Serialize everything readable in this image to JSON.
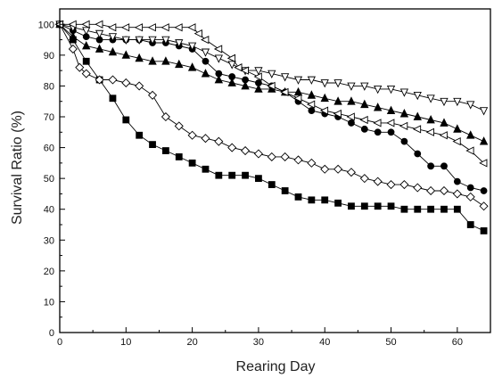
{
  "chart_data": {
    "type": "line",
    "xlabel": "Rearing Day",
    "ylabel": "Survival Ratio (%)",
    "xlim": [
      0,
      65
    ],
    "ylim": [
      0,
      105
    ],
    "xticks": [
      "0",
      "10",
      "20",
      "30",
      "40",
      "50",
      "60"
    ],
    "xtick_values": [
      0,
      10,
      20,
      30,
      40,
      50,
      60
    ],
    "yticks": [
      "0",
      "10",
      "20",
      "30",
      "40",
      "50",
      "60",
      "70",
      "80",
      "90",
      "100"
    ],
    "ytick_values": [
      0,
      10,
      20,
      30,
      40,
      50,
      60,
      70,
      80,
      90,
      100
    ],
    "grid": false,
    "legend": "none",
    "series": [
      {
        "marker": "filled-square",
        "x": [
          0,
          2,
          4,
          6,
          8,
          10,
          12,
          14,
          16,
          18,
          20,
          22,
          24,
          26,
          28,
          30,
          32,
          34,
          36,
          38,
          40,
          42,
          44,
          46,
          48,
          50,
          52,
          54,
          56,
          58,
          60,
          62,
          64
        ],
        "values": [
          100,
          95,
          88,
          82,
          76,
          69,
          64,
          61,
          59,
          57,
          55,
          53,
          51,
          51,
          51,
          50,
          48,
          46,
          44,
          43,
          43,
          42,
          41,
          41,
          41,
          41,
          40,
          40,
          40,
          40,
          40,
          35,
          33
        ]
      },
      {
        "marker": "open-diamond",
        "x": [
          0,
          2,
          3,
          4,
          6,
          8,
          10,
          12,
          14,
          16,
          18,
          20,
          22,
          24,
          26,
          28,
          30,
          32,
          34,
          36,
          38,
          40,
          42,
          44,
          46,
          48,
          50,
          52,
          54,
          56,
          58,
          60,
          62,
          64
        ],
        "values": [
          100,
          92,
          86,
          84,
          82,
          82,
          81,
          80,
          77,
          70,
          67,
          64,
          63,
          62,
          60,
          59,
          58,
          57,
          57,
          56,
          55,
          53,
          53,
          52,
          50,
          49,
          48,
          48,
          47,
          46,
          46,
          45,
          44,
          41
        ]
      },
      {
        "marker": "filled-circle",
        "x": [
          0,
          2,
          4,
          6,
          8,
          10,
          12,
          14,
          16,
          18,
          20,
          22,
          24,
          26,
          28,
          30,
          32,
          34,
          36,
          38,
          40,
          42,
          44,
          46,
          48,
          50,
          52,
          54,
          56,
          58,
          60,
          62,
          64
        ],
        "values": [
          100,
          98,
          96,
          95,
          95,
          95,
          95,
          94,
          94,
          93,
          92,
          88,
          84,
          83,
          82,
          81,
          80,
          78,
          75,
          72,
          71,
          70,
          68,
          66,
          65,
          65,
          62,
          58,
          54,
          54,
          49,
          47,
          46
        ]
      },
      {
        "marker": "filled-triangle-up",
        "x": [
          0,
          2,
          4,
          6,
          8,
          10,
          12,
          14,
          16,
          18,
          20,
          22,
          24,
          26,
          28,
          30,
          32,
          34,
          36,
          38,
          40,
          42,
          44,
          46,
          48,
          50,
          52,
          54,
          56,
          58,
          60,
          62,
          64
        ],
        "values": [
          100,
          96,
          93,
          92,
          91,
          90,
          89,
          88,
          88,
          87,
          86,
          84,
          82,
          81,
          80,
          79,
          79,
          78,
          78,
          77,
          76,
          75,
          75,
          74,
          73,
          72,
          71,
          70,
          69,
          68,
          66,
          64,
          62
        ]
      },
      {
        "marker": "open-triangle-down",
        "x": [
          0,
          2,
          4,
          6,
          8,
          10,
          12,
          14,
          16,
          18,
          20,
          22,
          24,
          26,
          28,
          30,
          32,
          34,
          36,
          38,
          40,
          42,
          44,
          46,
          48,
          50,
          52,
          54,
          56,
          58,
          60,
          62,
          64
        ],
        "values": [
          100,
          99,
          98,
          97,
          96,
          95,
          95,
          95,
          95,
          94,
          93,
          91,
          89,
          87,
          85,
          85,
          84,
          83,
          82,
          82,
          81,
          81,
          80,
          80,
          79,
          79,
          78,
          77,
          76,
          75,
          75,
          74,
          72
        ]
      },
      {
        "marker": "open-triangle-left",
        "x": [
          0,
          2,
          4,
          6,
          8,
          10,
          12,
          14,
          16,
          18,
          20,
          21,
          22,
          24,
          26,
          27,
          28,
          30,
          32,
          34,
          36,
          38,
          40,
          42,
          44,
          46,
          48,
          50,
          52,
          54,
          56,
          58,
          60,
          62,
          64
        ],
        "values": [
          100,
          100,
          100,
          100,
          99,
          99,
          99,
          99,
          99,
          99,
          99,
          97,
          95,
          92,
          89,
          86,
          85,
          83,
          80,
          78,
          76,
          74,
          72,
          71,
          70,
          69,
          68,
          68,
          67,
          66,
          65,
          64,
          62,
          59,
          55
        ]
      }
    ]
  }
}
